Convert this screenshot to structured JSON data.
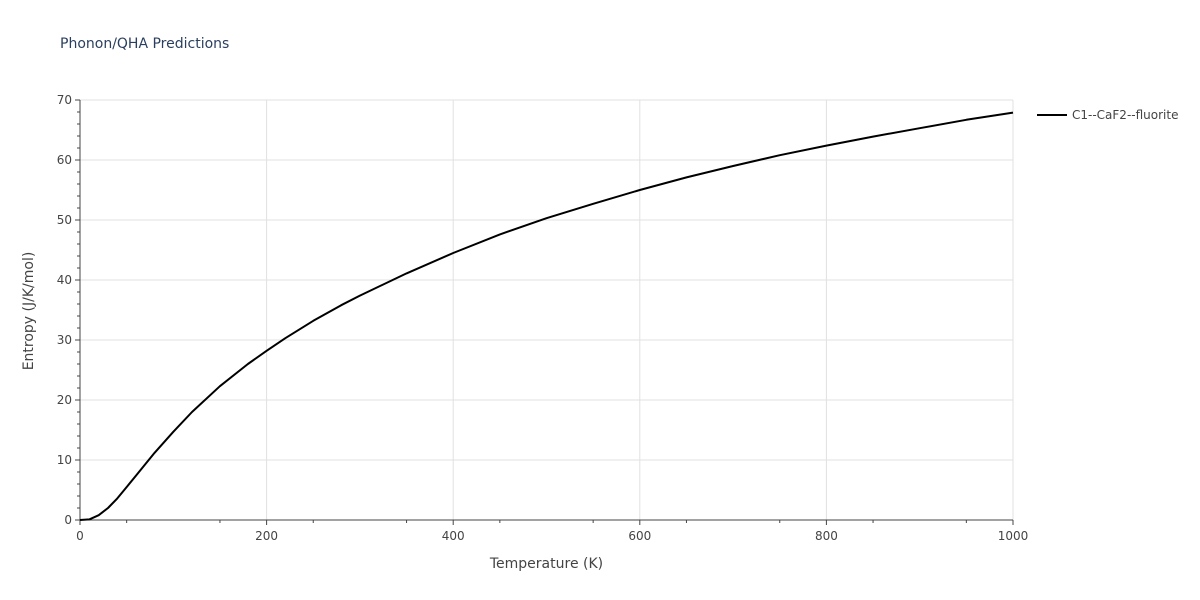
{
  "title": "Phonon/QHA Predictions",
  "chart_data": {
    "type": "line",
    "title": "Phonon/QHA Predictions",
    "xlabel": "Temperature (K)",
    "ylabel": "Entropy (J/K/mol)",
    "xlim": [
      0,
      1000
    ],
    "ylim": [
      0,
      70
    ],
    "xticks": [
      0,
      200,
      400,
      600,
      800,
      1000
    ],
    "yticks": [
      0,
      10,
      20,
      30,
      40,
      50,
      60,
      70
    ],
    "grid": true,
    "legend_position": "top-right",
    "series": [
      {
        "name": "C1--CaF2--fluorite",
        "color": "#000000",
        "x": [
          0,
          10,
          20,
          30,
          40,
          50,
          60,
          80,
          100,
          120,
          150,
          180,
          200,
          220,
          250,
          280,
          300,
          350,
          400,
          450,
          500,
          550,
          600,
          650,
          700,
          750,
          800,
          850,
          900,
          950,
          1000
        ],
        "y": [
          0,
          0.1,
          0.8,
          2.0,
          3.6,
          5.5,
          7.4,
          11.2,
          14.7,
          18.0,
          22.3,
          26.0,
          28.2,
          30.3,
          33.2,
          35.8,
          37.4,
          41.1,
          44.5,
          47.6,
          50.3,
          52.7,
          55.0,
          57.1,
          59.0,
          60.8,
          62.4,
          63.9,
          65.3,
          66.7,
          67.9
        ]
      }
    ]
  }
}
